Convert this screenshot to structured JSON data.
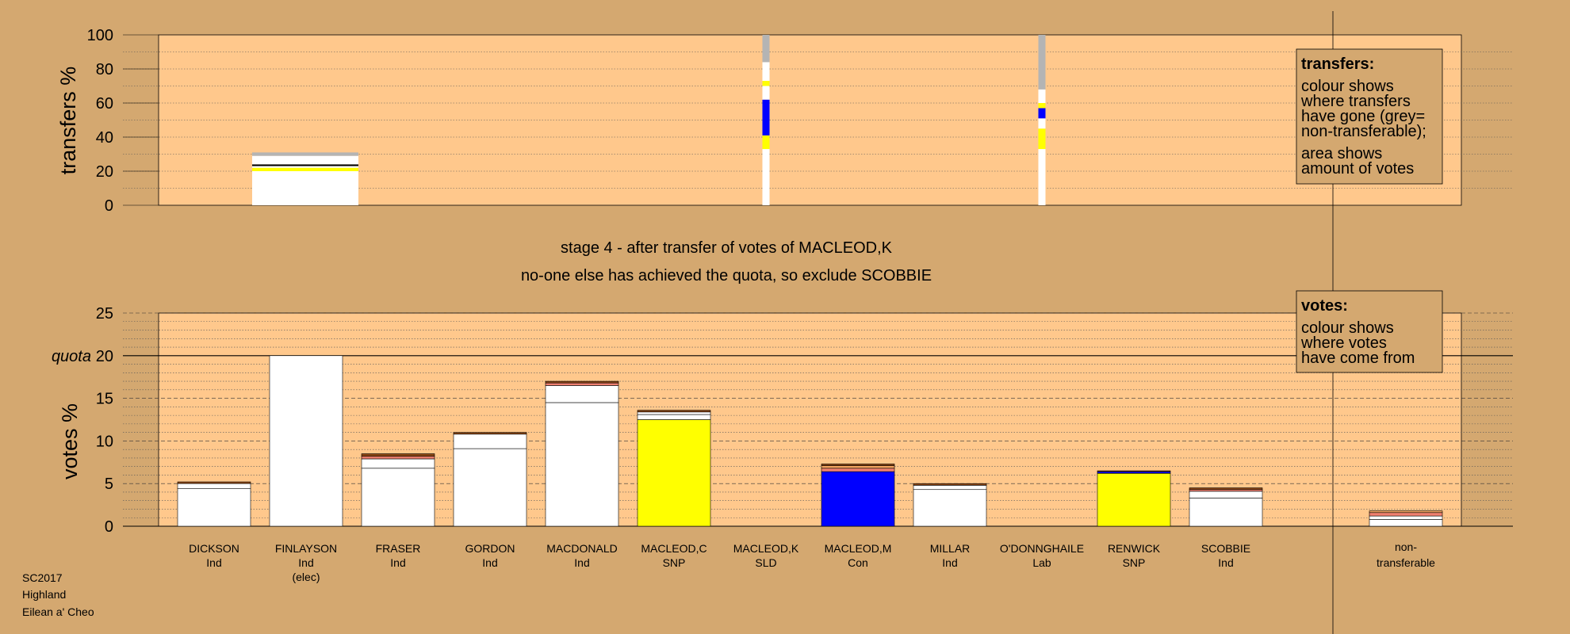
{
  "colors": {
    "background": "#d4a870",
    "plot_area": "#ffc88c",
    "Ind": "#ffffff",
    "SNP": "#ffff00",
    "Con": "#0000ff",
    "Lab": "#ff0000",
    "SLD": "#ffa500",
    "non_transferable": "#b4b4b4",
    "brown": "#8b4513",
    "salmon": "#f08070"
  },
  "stage_text": {
    "line1": "stage 4 - after transfer of votes of MACLEOD,K",
    "line2": "no-one else has achieved the quota, so exclude SCOBBIE"
  },
  "footer": {
    "line1": "SC2017",
    "line2": "Highland",
    "line3": "Eilean a' Cheo"
  },
  "legend_transfers": {
    "title": "transfers:",
    "lines": [
      "colour shows",
      "where transfers",
      "have gone (grey=",
      "non-transferable);"
    ],
    "lines2": [
      "area shows",
      "amount of votes"
    ]
  },
  "legend_votes": {
    "title": "votes:",
    "lines": [
      "colour shows",
      "where votes",
      "have come from"
    ]
  },
  "chart_data": [
    {
      "type": "bar",
      "name": "transfers",
      "ylabel": "transfers %",
      "ylim": [
        0,
        100
      ],
      "yticks": [
        "0",
        "20",
        "40",
        "60",
        "80",
        "100"
      ],
      "bars": [
        {
          "slot": 1,
          "width_fraction": 28.5,
          "segments": [
            {
              "from": 0,
              "to": 20,
              "color": "#ffffff"
            },
            {
              "from": 20,
              "to": 22,
              "color": "#ffff00"
            },
            {
              "from": 22,
              "to": 23,
              "color": "#ffffff"
            },
            {
              "from": 23,
              "to": 24,
              "color": "#000000"
            },
            {
              "from": 24,
              "to": 29,
              "color": "#ffffff"
            },
            {
              "from": 29,
              "to": 31,
              "color": "#b4b4b4"
            }
          ]
        },
        {
          "slot": 6,
          "width_fraction": 0.9,
          "segments": [
            {
              "from": 0,
              "to": 33,
              "color": "#ffffff"
            },
            {
              "from": 33,
              "to": 41,
              "color": "#ffff00"
            },
            {
              "from": 41,
              "to": 62,
              "color": "#0000ff"
            },
            {
              "from": 62,
              "to": 70,
              "color": "#ffffff"
            },
            {
              "from": 70,
              "to": 73,
              "color": "#ffff00"
            },
            {
              "from": 73,
              "to": 84,
              "color": "#ffffff"
            },
            {
              "from": 84,
              "to": 100,
              "color": "#b4b4b4"
            }
          ]
        },
        {
          "slot": 9,
          "width_fraction": 0.9,
          "segments": [
            {
              "from": 0,
              "to": 33,
              "color": "#ffffff"
            },
            {
              "from": 33,
              "to": 45,
              "color": "#ffff00"
            },
            {
              "from": 45,
              "to": 51,
              "color": "#ffffff"
            },
            {
              "from": 51,
              "to": 57,
              "color": "#0000ff"
            },
            {
              "from": 57,
              "to": 60,
              "color": "#ffff00"
            },
            {
              "from": 60,
              "to": 68,
              "color": "#ffffff"
            },
            {
              "from": 68,
              "to": 100,
              "color": "#b4b4b4"
            }
          ]
        }
      ]
    },
    {
      "type": "bar",
      "name": "votes",
      "ylabel": "votes %",
      "ylim": [
        0,
        25
      ],
      "yticks": [
        "0",
        "5",
        "10",
        "15",
        "20",
        "25"
      ],
      "quota": {
        "label": "quota",
        "value": 20
      },
      "candidates": [
        {
          "name": "DICKSON",
          "party": "Ind",
          "note": "",
          "segments": [
            {
              "from": 0,
              "to": 4.4,
              "color": "#ffffff"
            },
            {
              "from": 4.4,
              "to": 5.0,
              "color": "#ffffff"
            },
            {
              "from": 5.0,
              "to": 5.2,
              "color": "#8b4513"
            }
          ]
        },
        {
          "name": "FINLAYSON",
          "party": "Ind",
          "note": "(elec)",
          "segments": [
            {
              "from": 0,
              "to": 20.0,
              "color": "#ffffff"
            }
          ]
        },
        {
          "name": "FRASER",
          "party": "Ind",
          "note": "",
          "segments": [
            {
              "from": 0,
              "to": 6.8,
              "color": "#ffffff"
            },
            {
              "from": 6.8,
              "to": 7.9,
              "color": "#ffffff"
            },
            {
              "from": 7.9,
              "to": 8.2,
              "color": "#f08070"
            },
            {
              "from": 8.2,
              "to": 8.5,
              "color": "#8b4513"
            }
          ]
        },
        {
          "name": "GORDON",
          "party": "Ind",
          "note": "",
          "segments": [
            {
              "from": 0,
              "to": 9.1,
              "color": "#ffffff"
            },
            {
              "from": 9.1,
              "to": 10.8,
              "color": "#ffffff"
            },
            {
              "from": 10.8,
              "to": 11.0,
              "color": "#8b4513"
            }
          ]
        },
        {
          "name": "MACDONALD",
          "party": "Ind",
          "note": "",
          "segments": [
            {
              "from": 0,
              "to": 14.5,
              "color": "#ffffff"
            },
            {
              "from": 14.5,
              "to": 16.5,
              "color": "#ffffff"
            },
            {
              "from": 16.5,
              "to": 16.8,
              "color": "#f08070"
            },
            {
              "from": 16.8,
              "to": 17.0,
              "color": "#8b4513"
            }
          ]
        },
        {
          "name": "MACLEOD,C",
          "party": "SNP",
          "note": "",
          "segments": [
            {
              "from": 0,
              "to": 12.5,
              "color": "#ffff00"
            },
            {
              "from": 12.5,
              "to": 13.1,
              "color": "#ffffff"
            },
            {
              "from": 13.1,
              "to": 13.4,
              "color": "#ffffff"
            },
            {
              "from": 13.4,
              "to": 13.6,
              "color": "#8b4513"
            }
          ]
        },
        {
          "name": "MACLEOD,K",
          "party": "SLD",
          "note": "",
          "segments": []
        },
        {
          "name": "MACLEOD,M",
          "party": "Con",
          "note": "",
          "segments": [
            {
              "from": 0,
              "to": 6.4,
              "color": "#0000ff"
            },
            {
              "from": 6.4,
              "to": 6.8,
              "color": "#f08070"
            },
            {
              "from": 6.8,
              "to": 7.1,
              "color": "#f4a460"
            },
            {
              "from": 7.1,
              "to": 7.3,
              "color": "#8b4513"
            }
          ]
        },
        {
          "name": "MILLAR",
          "party": "Ind",
          "note": "",
          "segments": [
            {
              "from": 0,
              "to": 4.3,
              "color": "#ffffff"
            },
            {
              "from": 4.3,
              "to": 4.8,
              "color": "#ffffff"
            },
            {
              "from": 4.8,
              "to": 5.0,
              "color": "#8b4513"
            }
          ]
        },
        {
          "name": "O'DONNGHAILE",
          "party": "Lab",
          "note": "",
          "segments": []
        },
        {
          "name": "RENWICK",
          "party": "SNP",
          "note": "",
          "segments": [
            {
              "from": 0,
              "to": 6.2,
              "color": "#ffff00"
            },
            {
              "from": 6.2,
              "to": 6.4,
              "color": "#0000ff"
            },
            {
              "from": 6.4,
              "to": 6.5,
              "color": "#8b4513"
            }
          ]
        },
        {
          "name": "SCOBBIE",
          "party": "Ind",
          "note": "",
          "segments": [
            {
              "from": 0,
              "to": 3.3,
              "color": "#ffffff"
            },
            {
              "from": 3.3,
              "to": 4.1,
              "color": "#ffffff"
            },
            {
              "from": 4.1,
              "to": 4.3,
              "color": "#f08070"
            },
            {
              "from": 4.3,
              "to": 4.5,
              "color": "#8b4513"
            }
          ]
        }
      ],
      "non_transferable": {
        "label_line1": "non-",
        "label_line2": "transferable",
        "segments": [
          {
            "from": 0,
            "to": 0.8,
            "color": "#ffffff"
          },
          {
            "from": 0.8,
            "to": 1.2,
            "color": "#ffffff"
          },
          {
            "from": 1.2,
            "to": 1.6,
            "color": "#f08070"
          },
          {
            "from": 1.6,
            "to": 1.8,
            "color": "#f4a460"
          }
        ]
      }
    }
  ]
}
